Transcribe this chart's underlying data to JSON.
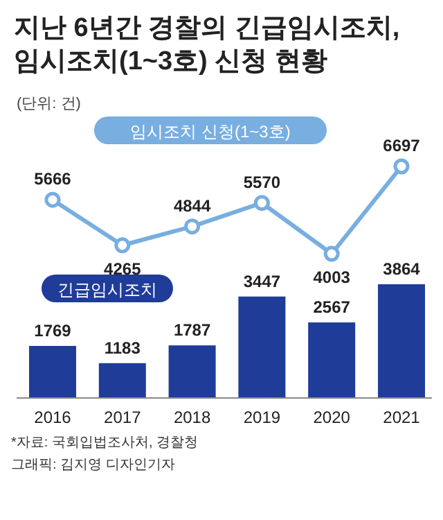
{
  "chart_data": [
    {
      "type": "line",
      "title": "지난 6년간 경찰의 긴급임시조치,\n임시조치(1~3호) 신청 현황",
      "subtitle": "(단위: 건)",
      "categories": [
        null,
        null,
        null,
        null,
        null,
        null
      ],
      "tick_labels": false,
      "series": [
        {
          "name": "임시조치 신청(1~3호)",
          "color": "#78aee0",
          "values": [
            5666,
            4265,
            4844,
            5570,
            4003,
            6697
          ]
        }
      ],
      "data_labels": true,
      "marker": "circle"
    },
    {
      "type": "bar",
      "categories": [
        "2016",
        "2017",
        "2018",
        "2019",
        "2020",
        "2021"
      ],
      "series": [
        {
          "name": "긴급임시조치",
          "color": "#1f3c99",
          "values": [
            1769,
            1183,
            1787,
            3447,
            2567,
            3864
          ]
        }
      ],
      "data_labels": true,
      "annotations": [
        "*자료: 국회입법조사처, 경찰청",
        "그래픽: 김지영 디자인기자"
      ]
    }
  ]
}
